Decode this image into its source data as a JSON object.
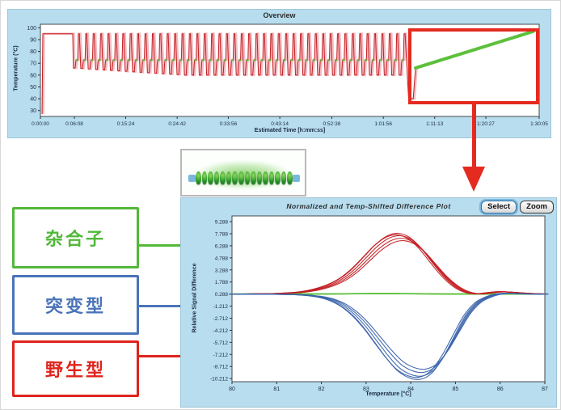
{
  "overview": {
    "title": "Overview",
    "xlabel": "Estimated Time [h:mm:ss]",
    "ylabel": "Temperature (°C)"
  },
  "diff_plot": {
    "title": "Normalized and Temp-Shifted Difference Plot",
    "xlabel": "Temperature [°C]",
    "ylabel": "Relative Signal Difference",
    "buttons": {
      "select": "Select",
      "zoom": "Zoom"
    }
  },
  "genotype_labels": [
    {
      "text": "杂合子",
      "color": "#52b83a"
    },
    {
      "text": "突变型",
      "color": "#4a74b8"
    },
    {
      "text": "野生型",
      "color": "#df241c"
    }
  ],
  "annotations": {
    "highlight_color": "#e52a20"
  },
  "specimen": {
    "bead_count": 16,
    "glow_color": "#74c954",
    "cap_color": "#7ab7dc"
  },
  "colors": {
    "panel_bg": "#b7ddee",
    "wild_type_red": "#c41e22",
    "mutant_blue": "#3a63ad",
    "heterozygote_green": "#5cc03a",
    "trace_shadow_pink": "#f2bcc2",
    "axis_text": "#1c2a45"
  },
  "chart_data": [
    {
      "id": "overview",
      "type": "line",
      "title": "Overview",
      "xlabel": "Estimated Time [h:mm:ss]",
      "ylabel": "Temperature (°C)",
      "x_ticks": [
        "0:00:00",
        "0:06:08",
        "0:15:24",
        "0:24:42",
        "0:33:56",
        "0:43:14",
        "0:52:38",
        "1:01:56",
        "1:11:13",
        "1:20:27",
        "1:30:05"
      ],
      "y_ticks": [
        100,
        90,
        80,
        70,
        60,
        50,
        40,
        30
      ],
      "ylim": [
        25,
        103
      ],
      "xlim_seconds": [
        0,
        5405
      ],
      "grid": false,
      "profile": {
        "initial_ramp": {
          "start_s": 18,
          "from_temp": 27,
          "to_s": 26,
          "to_temp": 95
        },
        "initial_hold": {
          "end_s": 350,
          "temp": 95
        },
        "cycles": {
          "count": 45,
          "start_s": 350,
          "end_s": 3960,
          "denature_temp": 95,
          "low_temp_start": 66,
          "low_temp_min": 60,
          "low_temp_step": 0.4,
          "extension_temp": 73
        },
        "cooling_dip": {
          "start_s": 3990,
          "end_s": 4040,
          "temp": 40
        },
        "melt_ramp": {
          "start_s": 4065,
          "end_s": 5343,
          "from_temp": 66,
          "to_temp": 97
        }
      }
    },
    {
      "id": "difference",
      "type": "line",
      "title": "Normalized and Temp-Shifted Difference Plot",
      "xlabel": "Temperature [°C]",
      "ylabel": "Relative Signal Difference",
      "x_ticks": [
        80,
        81,
        82,
        83,
        84,
        85,
        86,
        87
      ],
      "y_ticks": [
        9.288,
        7.788,
        6.288,
        4.788,
        3.288,
        1.788,
        0.288,
        -1.212,
        -2.712,
        -4.212,
        -5.712,
        -7.212,
        -8.712,
        -10.212
      ],
      "xlim": [
        80,
        87
      ],
      "ylim": [
        -10.6,
        10.0
      ],
      "grid": false,
      "baseline": 0.288,
      "x": [
        80,
        80.25,
        80.5,
        80.75,
        81,
        81.25,
        81.5,
        81.75,
        82,
        82.25,
        82.5,
        82.75,
        83,
        83.25,
        83.5,
        83.75,
        84,
        84.25,
        84.5,
        84.75,
        85,
        85.25,
        85.5,
        85.75,
        86,
        86.25,
        86.5,
        86.75,
        87
      ],
      "series": [
        {
          "name": "杂合子",
          "color": "#5cc03a",
          "bundle": 3,
          "values": [
            0.29,
            0.29,
            0.3,
            0.3,
            0.29,
            0.3,
            0.31,
            0.3,
            0.3,
            0.31,
            0.32,
            0.33,
            0.34,
            0.35,
            0.35,
            0.34,
            0.33,
            0.32,
            0.31,
            0.3,
            0.3,
            0.29,
            0.29,
            0.3,
            0.3,
            0.29,
            0.29,
            0.29,
            0.29
          ]
        },
        {
          "name": "野生型",
          "color": "#c41e22",
          "bundle": 5,
          "values": [
            0.29,
            0.3,
            0.31,
            0.33,
            0.36,
            0.42,
            0.52,
            0.72,
            1.05,
            1.55,
            2.3,
            3.4,
            4.8,
            6.2,
            7.2,
            7.55,
            7.1,
            5.9,
            4.2,
            2.55,
            1.3,
            0.55,
            0.32,
            0.45,
            0.58,
            0.52,
            0.42,
            0.34,
            0.3
          ]
        },
        {
          "name": "突变型",
          "color": "#3a63ad",
          "bundle": 5,
          "values": [
            0.28,
            0.28,
            0.28,
            0.27,
            0.26,
            0.24,
            0.2,
            0.1,
            -0.1,
            -0.5,
            -1.2,
            -2.3,
            -3.8,
            -5.6,
            -7.4,
            -8.9,
            -9.7,
            -9.9,
            -9.2,
            -7.4,
            -4.9,
            -2.4,
            -0.8,
            -0.05,
            0.32,
            0.38,
            0.32,
            0.29,
            0.28
          ]
        }
      ]
    }
  ]
}
